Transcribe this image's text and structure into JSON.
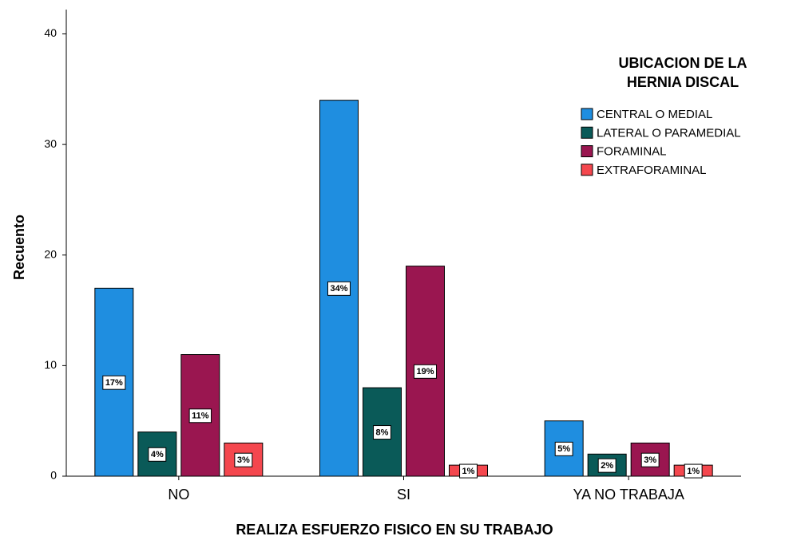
{
  "chart_data": {
    "type": "bar",
    "x_label": "REALIZA ESFUERZO FISICO EN SU TRABAJO",
    "y_label": "Recuento",
    "legend_title": [
      "UBICACION DE LA",
      "HERNIA DISCAL"
    ],
    "categories": [
      "NO",
      "SI",
      "YA NO TRABAJA"
    ],
    "series": [
      {
        "name": "CENTRAL O MEDIAL",
        "color": "#1f8ee0",
        "values": [
          17,
          34,
          5
        ],
        "value_labels": [
          "17%",
          "34%",
          "5%"
        ]
      },
      {
        "name": "LATERAL O PARAMEDIAL",
        "color": "#0a5a58",
        "values": [
          4,
          8,
          2
        ],
        "value_labels": [
          "4%",
          "8%",
          "2%"
        ]
      },
      {
        "name": "FORAMINAL",
        "color": "#9a1650",
        "values": [
          11,
          19,
          3
        ],
        "value_labels": [
          "11%",
          "19%",
          "3%"
        ]
      },
      {
        "name": "EXTRAFORAMINAL",
        "color": "#f4474e",
        "values": [
          3,
          1,
          1
        ],
        "value_labels": [
          "3%",
          "1%",
          "1%"
        ]
      }
    ],
    "ylim": [
      0,
      42.2
    ],
    "yticks": [
      0,
      10,
      20,
      30,
      40
    ],
    "grid": false,
    "legend": "upper right"
  }
}
